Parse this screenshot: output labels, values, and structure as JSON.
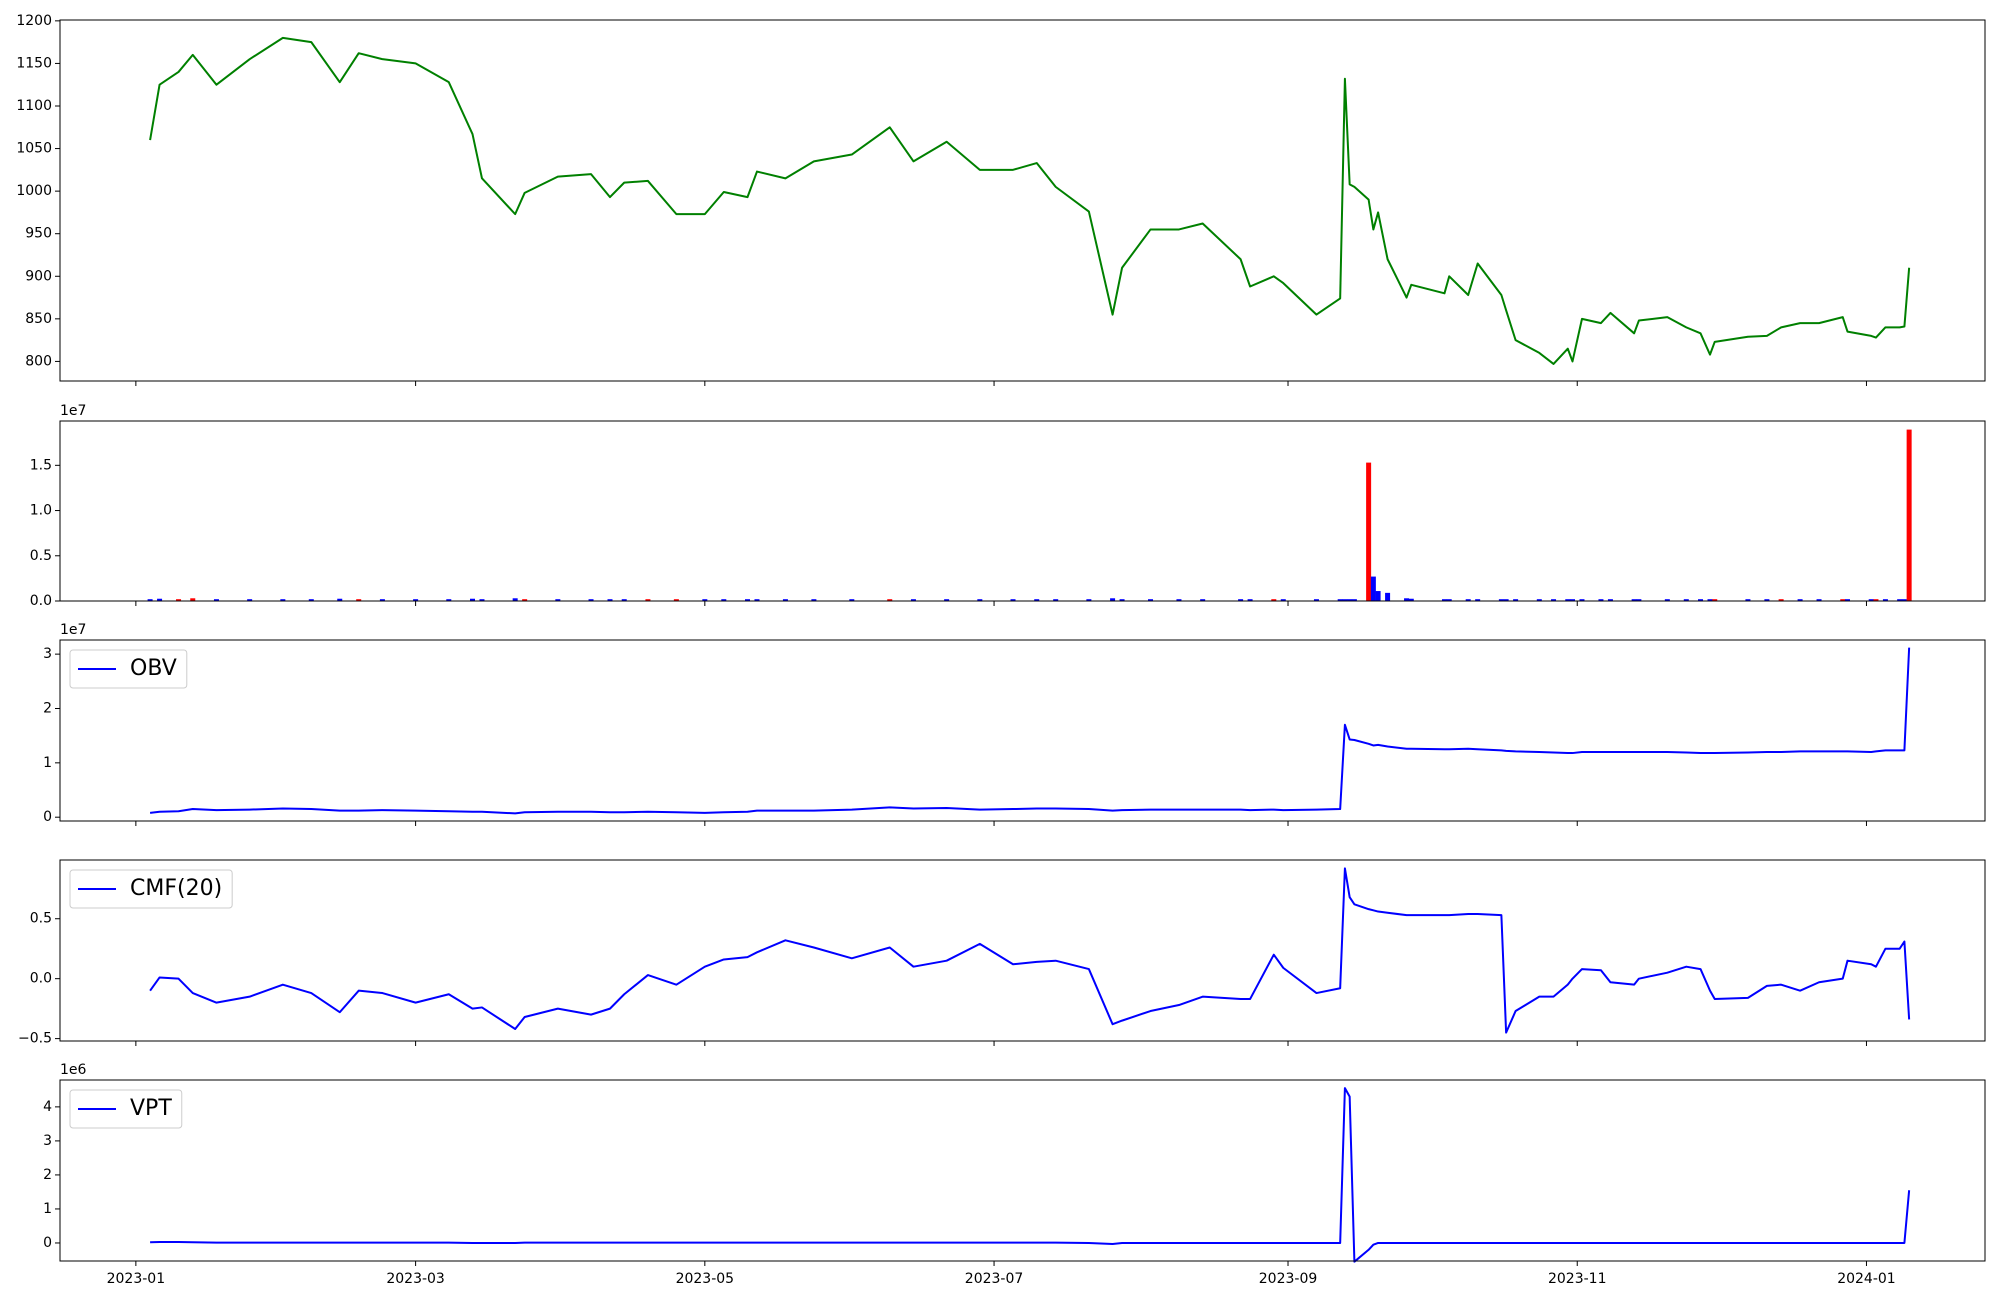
{
  "chart_data": {
    "type": "stacked-panels",
    "x": [
      "2023-01-04",
      "2023-01-06",
      "2023-01-10",
      "2023-01-13",
      "2023-01-18",
      "2023-01-25",
      "2023-02-01",
      "2023-02-07",
      "2023-02-13",
      "2023-02-17",
      "2023-02-22",
      "2023-03-01",
      "2023-03-08",
      "2023-03-13",
      "2023-03-15",
      "2023-03-22",
      "2023-03-24",
      "2023-03-31",
      "2023-04-07",
      "2023-04-11",
      "2023-04-14",
      "2023-04-19",
      "2023-04-25",
      "2023-05-01",
      "2023-05-05",
      "2023-05-10",
      "2023-05-12",
      "2023-05-18",
      "2023-05-24",
      "2023-06-01",
      "2023-06-09",
      "2023-06-14",
      "2023-06-21",
      "2023-06-28",
      "2023-07-05",
      "2023-07-10",
      "2023-07-14",
      "2023-07-21",
      "2023-07-26",
      "2023-07-28",
      "2023-08-03",
      "2023-08-09",
      "2023-08-14",
      "2023-08-22",
      "2023-08-24",
      "2023-08-29",
      "2023-08-31",
      "2023-09-07",
      "2023-09-12",
      "2023-09-13",
      "2023-09-14",
      "2023-09-15",
      "2023-09-18",
      "2023-09-19",
      "2023-09-20",
      "2023-09-22",
      "2023-09-26",
      "2023-09-27",
      "2023-10-04",
      "2023-10-05",
      "2023-10-09",
      "2023-10-11",
      "2023-10-16",
      "2023-10-17",
      "2023-10-19",
      "2023-10-24",
      "2023-10-27",
      "2023-10-30",
      "2023-10-31",
      "2023-11-02",
      "2023-11-06",
      "2023-11-08",
      "2023-11-13",
      "2023-11-14",
      "2023-11-20",
      "2023-11-24",
      "2023-11-27",
      "2023-11-29",
      "2023-11-30",
      "2023-12-07",
      "2023-12-11",
      "2023-12-14",
      "2023-12-18",
      "2023-12-22",
      "2023-12-27",
      "2023-12-28",
      "2024-01-02",
      "2024-01-03",
      "2024-01-05",
      "2024-01-08",
      "2024-01-09",
      "2024-01-10"
    ],
    "xlim": [
      "2022-12-16",
      "2024-01-26"
    ],
    "xticks": [
      {
        "value": "2023-01-01",
        "label": "2023-01"
      },
      {
        "value": "2023-03-01",
        "label": "2023-03"
      },
      {
        "value": "2023-05-01",
        "label": "2023-05"
      },
      {
        "value": "2023-07-01",
        "label": "2023-07"
      },
      {
        "value": "2023-09-01",
        "label": "2023-09"
      },
      {
        "value": "2023-11-01",
        "label": "2023-11"
      },
      {
        "value": "2024-01-01",
        "label": "2024-01"
      }
    ],
    "panels": [
      {
        "type": "line",
        "ylim": [
          777,
          1201
        ],
        "yticks": [
          800,
          850,
          900,
          950,
          1000,
          1050,
          1100,
          1150,
          1200
        ],
        "series": [
          {
            "color": "#008000",
            "values": [
              1060,
              1125,
              1140,
              1160,
              1125,
              1155,
              1180,
              1175,
              1128,
              1162,
              1155,
              1150,
              1128,
              1067,
              1015,
              973,
              998,
              1017,
              1020,
              993,
              1010,
              1012,
              973,
              973,
              999,
              993,
              1023,
              1015,
              1035,
              1043,
              1075,
              1035,
              1058,
              1025,
              1025,
              1033,
              1005,
              976,
              855,
              910,
              955,
              955,
              962,
              920,
              888,
              900,
              892,
              855,
              874,
              1132,
              1008,
              1005,
              990,
              955,
              975,
              920,
              875,
              890,
              880,
              900,
              878,
              915,
              878,
              860,
              825,
              810,
              797,
              815,
              800,
              850,
              845,
              857,
              833,
              848,
              852,
              840,
              833,
              808,
              823,
              829,
              830,
              840,
              845,
              845,
              852,
              835,
              830,
              828,
              840,
              840,
              841,
              910
            ]
          }
        ]
      },
      {
        "type": "bar",
        "ylim": [
          0,
          19900000
        ],
        "y_offset_label": "1e7",
        "yticks": [
          {
            "value": 0,
            "label": "0.0"
          },
          {
            "value": 5000000,
            "label": "0.5"
          },
          {
            "value": 10000000,
            "label": "1.0"
          },
          {
            "value": 15000000,
            "label": "1.5"
          }
        ],
        "values": [
          200000,
          250000,
          200000,
          300000,
          200000,
          200000,
          200000,
          200000,
          250000,
          200000,
          200000,
          200000,
          200000,
          250000,
          200000,
          300000,
          200000,
          200000,
          200000,
          200000,
          200000,
          200000,
          200000,
          200000,
          200000,
          200000,
          200000,
          200000,
          200000,
          200000,
          200000,
          200000,
          200000,
          200000,
          200000,
          200000,
          200000,
          200000,
          300000,
          200000,
          200000,
          200000,
          200000,
          200000,
          200000,
          200000,
          200000,
          200000,
          200000,
          200000,
          200000,
          200000,
          15300000,
          2700000,
          1100000,
          900000,
          300000,
          250000,
          200000,
          200000,
          200000,
          200000,
          200000,
          200000,
          200000,
          200000,
          200000,
          200000,
          200000,
          200000,
          200000,
          200000,
          200000,
          200000,
          200000,
          200000,
          200000,
          200000,
          200000,
          200000,
          200000,
          200000,
          200000,
          200000,
          200000,
          200000,
          200000,
          200000,
          200000,
          200000,
          200000,
          18950000
        ],
        "colors": [
          "blue",
          "blue",
          "red",
          "red",
          "blue",
          "blue",
          "blue",
          "blue",
          "blue",
          "red",
          "blue",
          "blue",
          "blue",
          "blue",
          "blue",
          "blue",
          "red",
          "blue",
          "blue",
          "blue",
          "blue",
          "red",
          "red",
          "blue",
          "blue",
          "blue",
          "blue",
          "blue",
          "blue",
          "blue",
          "red",
          "blue",
          "blue",
          "blue",
          "blue",
          "blue",
          "blue",
          "blue",
          "blue",
          "blue",
          "blue",
          "blue",
          "blue",
          "blue",
          "blue",
          "red",
          "blue",
          "blue",
          "blue",
          "blue",
          "blue",
          "blue",
          "red",
          "blue",
          "blue",
          "blue",
          "blue",
          "blue",
          "blue",
          "blue",
          "blue",
          "blue",
          "blue",
          "blue",
          "blue",
          "blue",
          "blue",
          "blue",
          "blue",
          "blue",
          "blue",
          "blue",
          "blue",
          "blue",
          "blue",
          "blue",
          "blue",
          "blue",
          "red",
          "blue",
          "blue",
          "red",
          "blue",
          "blue",
          "red",
          "blue",
          "blue",
          "red",
          "blue",
          "blue",
          "blue",
          "red"
        ]
      },
      {
        "type": "line",
        "ylim": [
          -700000,
          32600000
        ],
        "y_offset_label": "1e7",
        "legend": "upper left",
        "yticks": [
          0,
          {
            "value": 10000000,
            "label": "1"
          },
          {
            "value": 20000000,
            "label": "2"
          },
          {
            "value": 30000000,
            "label": "3"
          }
        ],
        "series": [
          {
            "name": "OBV",
            "color": "#0000ff",
            "values": [
              800000,
              1000000,
              1100000,
              1500000,
              1300000,
              1400000,
              1600000,
              1500000,
              1200000,
              1200000,
              1300000,
              1200000,
              1100000,
              1000000,
              1000000,
              700000,
              900000,
              1000000,
              1000000,
              900000,
              900000,
              1000000,
              900000,
              800000,
              900000,
              1000000,
              1200000,
              1200000,
              1200000,
              1400000,
              1800000,
              1600000,
              1700000,
              1400000,
              1500000,
              1600000,
              1600000,
              1500000,
              1200000,
              1300000,
              1400000,
              1400000,
              1400000,
              1400000,
              1300000,
              1400000,
              1300000,
              1400000,
              1500000,
              17000000,
              14300000,
              14200000,
              13500000,
              13200000,
              13300000,
              13000000,
              12600000,
              12600000,
              12500000,
              12500000,
              12600000,
              12500000,
              12300000,
              12200000,
              12100000,
              12000000,
              11900000,
              11800000,
              11800000,
              12000000,
              12000000,
              12000000,
              12000000,
              12000000,
              12000000,
              11900000,
              11800000,
              11800000,
              11800000,
              11900000,
              12000000,
              12000000,
              12100000,
              12100000,
              12100000,
              12100000,
              12000000,
              12100000,
              12300000,
              12300000,
              12300000,
              31200000
            ]
          }
        ]
      },
      {
        "type": "line",
        "ylim": [
          -0.52,
          0.99
        ],
        "legend": "upper left",
        "yticks": [
          {
            "value": -0.5,
            "label": "−0.5"
          },
          {
            "value": 0,
            "label": "0.0"
          },
          {
            "value": 0.5,
            "label": "0.5"
          }
        ],
        "series": [
          {
            "name": "CMF(20)",
            "color": "#0000ff",
            "values": [
              -0.1,
              0.01,
              0,
              -0.12,
              -0.2,
              -0.15,
              -0.05,
              -0.12,
              -0.28,
              -0.1,
              -0.12,
              -0.2,
              -0.13,
              -0.25,
              -0.24,
              -0.42,
              -0.32,
              -0.25,
              -0.3,
              -0.25,
              -0.13,
              0.03,
              -0.05,
              0.1,
              0.16,
              0.18,
              0.22,
              0.32,
              0.26,
              0.17,
              0.26,
              0.1,
              0.15,
              0.29,
              0.12,
              0.14,
              0.15,
              0.08,
              -0.38,
              -0.35,
              -0.27,
              -0.22,
              -0.15,
              -0.17,
              -0.17,
              0.2,
              0.09,
              -0.12,
              -0.08,
              0.92,
              0.68,
              0.62,
              0.58,
              0.57,
              0.56,
              0.55,
              0.53,
              0.53,
              0.53,
              0.53,
              0.54,
              0.54,
              0.53,
              -0.45,
              -0.27,
              -0.15,
              -0.15,
              -0.05,
              0,
              0.08,
              0.07,
              -0.03,
              -0.05,
              0,
              0.05,
              0.1,
              0.08,
              -0.1,
              -0.17,
              -0.16,
              -0.06,
              -0.05,
              -0.1,
              -0.03,
              0,
              0.15,
              0.12,
              0.1,
              0.25,
              0.25,
              0.31,
              -0.34
            ]
          }
        ]
      },
      {
        "type": "line",
        "ylim": [
          -530000,
          4790000
        ],
        "y_offset_label": "1e6",
        "legend": "upper left",
        "yticks": [
          0,
          {
            "value": 1000000,
            "label": "1"
          },
          {
            "value": 2000000,
            "label": "2"
          },
          {
            "value": 3000000,
            "label": "3"
          },
          {
            "value": 4000000,
            "label": "4"
          }
        ],
        "series": [
          {
            "name": "VPT",
            "color": "#0000ff",
            "values": [
              20000,
              30000,
              30000,
              20000,
              10000,
              10000,
              10000,
              10000,
              10000,
              10000,
              10000,
              10000,
              10000,
              0,
              0,
              0,
              10000,
              10000,
              10000,
              10000,
              10000,
              10000,
              10000,
              10000,
              10000,
              10000,
              10000,
              10000,
              10000,
              10000,
              10000,
              10000,
              10000,
              10000,
              10000,
              10000,
              10000,
              0,
              -30000,
              0,
              0,
              0,
              0,
              0,
              0,
              0,
              0,
              0,
              0,
              4550000,
              4300000,
              -550000,
              -200000,
              -50000,
              0,
              0,
              0,
              0,
              0,
              0,
              0,
              0,
              0,
              0,
              0,
              0,
              0,
              0,
              0,
              0,
              0,
              0,
              0,
              0,
              0,
              0,
              0,
              0,
              0,
              0,
              0,
              0,
              0,
              0,
              0,
              0,
              0,
              0,
              0,
              0,
              0,
              1550000
            ]
          }
        ]
      }
    ]
  }
}
